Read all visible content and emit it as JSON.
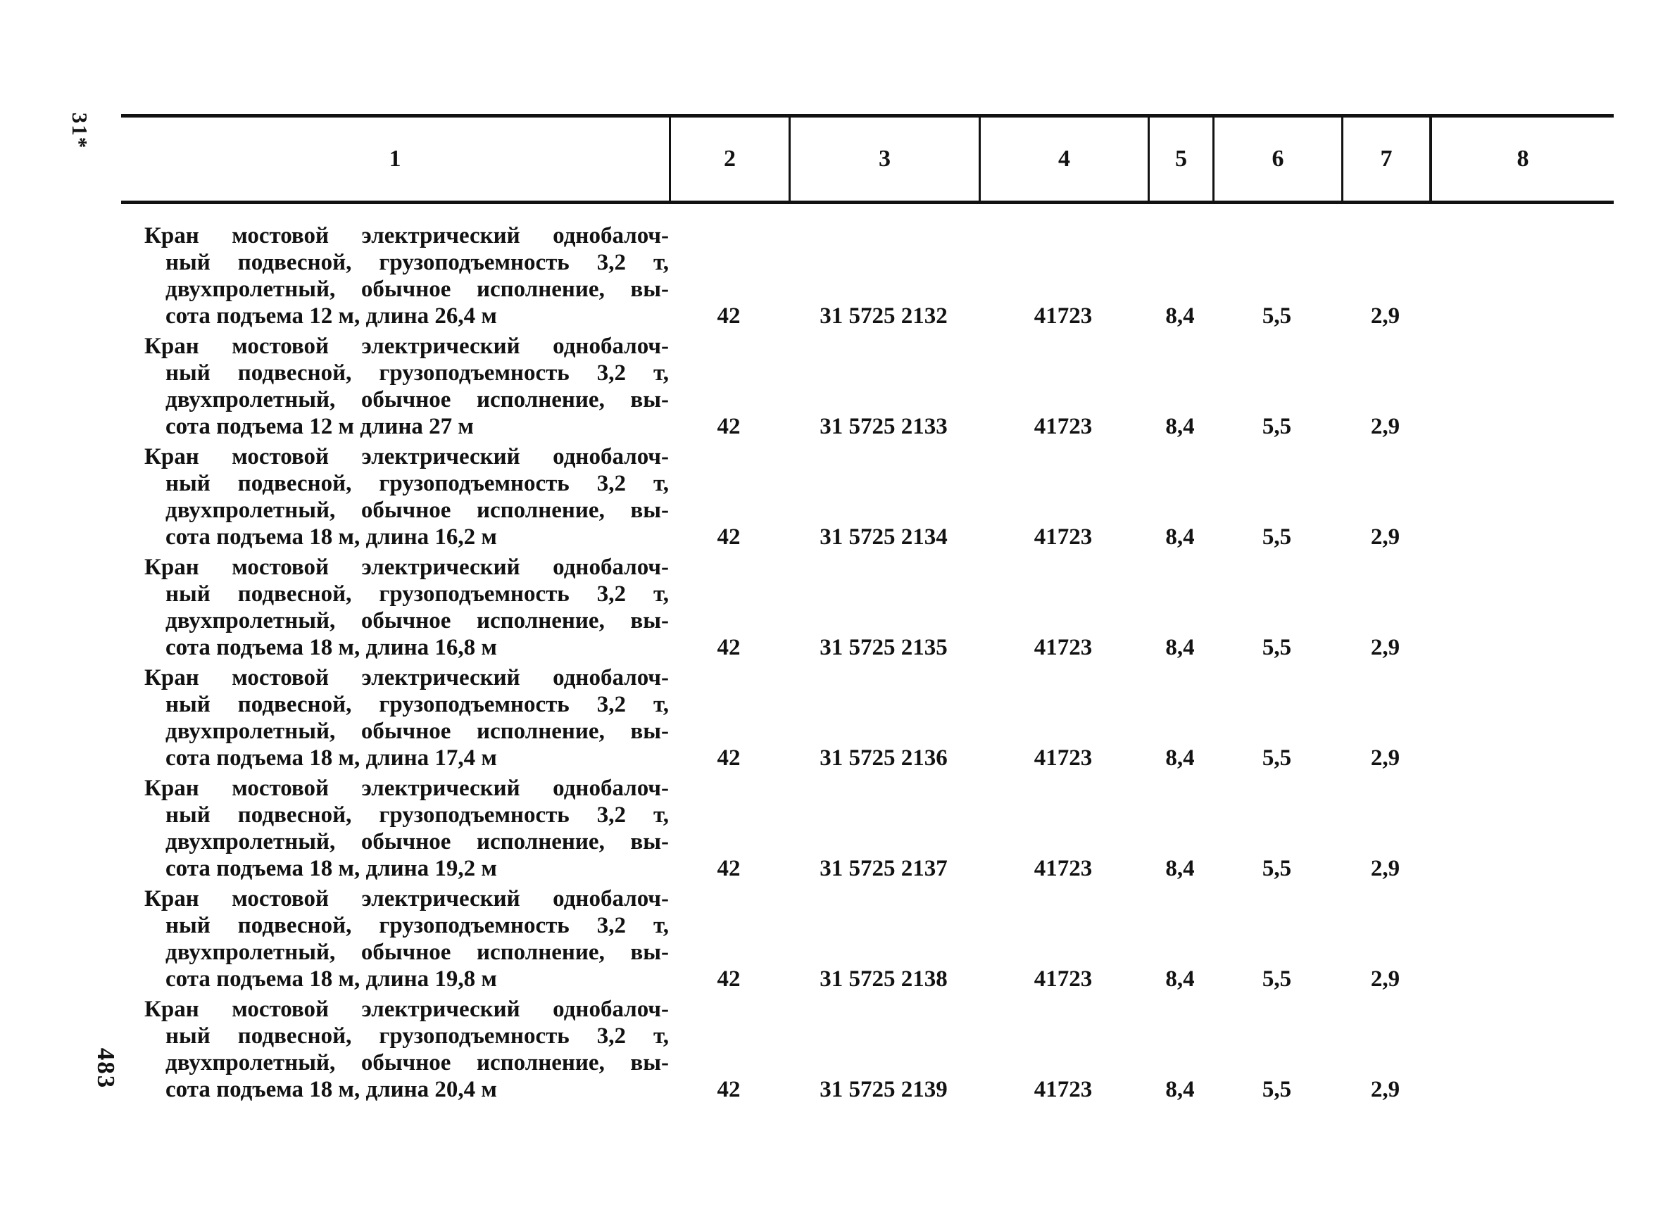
{
  "page": {
    "marginal_top_label": "31*",
    "page_number": "483",
    "ink_color": "#121212",
    "paper_color": "#ffffff"
  },
  "table": {
    "header": {
      "cols": [
        "1",
        "2",
        "3",
        "4",
        "5",
        "6",
        "7",
        "8"
      ]
    },
    "rows": [
      {
        "lines": [
          "Кран мостовой электрический однобалоч-",
          "ный подвесной, грузоподъемность 3,2 т,",
          "двухпролетный, обычное исполнение, вы-",
          "сота подъема 12 м, длина 26,4 м"
        ],
        "values": [
          "42",
          "31 5725 2132",
          "41723",
          "8,4",
          "5,5",
          "2,9",
          ""
        ]
      },
      {
        "lines": [
          "Кран мостовой электрический однобалоч-",
          "ный подвесной, грузоподъемность 3,2 т,",
          "двухпролетный, обычное исполнение, вы-",
          "сота подъема 12 м длина 27 м"
        ],
        "values": [
          "42",
          "31 5725 2133",
          "41723",
          "8,4",
          "5,5",
          "2,9",
          ""
        ]
      },
      {
        "lines": [
          "Кран мостовой электрический однобалоч-",
          "ный подвесной, грузоподъемность 3,2 т,",
          "двухпролетный, обычное исполнение, вы-",
          "сота подъема 18 м, длина 16,2 м"
        ],
        "values": [
          "42",
          "31 5725 2134",
          "41723",
          "8,4",
          "5,5",
          "2,9",
          ""
        ]
      },
      {
        "lines": [
          "Кран мостовой электрический однобалоч-",
          "ный подвесной, грузоподъемность 3,2 т,",
          "двухпролетный, обычное исполнение, вы-",
          "сота подъема 18 м, длина 16,8 м"
        ],
        "values": [
          "42",
          "31 5725 2135",
          "41723",
          "8,4",
          "5,5",
          "2,9",
          ""
        ]
      },
      {
        "lines": [
          "Кран мостовой электрический однобалоч-",
          "ный подвесной, грузоподъемность 3,2 т,",
          "двухпролетный, обычное исполнение, вы-",
          "сота подъема 18 м, длина 17,4 м"
        ],
        "values": [
          "42",
          "31 5725 2136",
          "41723",
          "8,4",
          "5,5",
          "2,9",
          ""
        ]
      },
      {
        "lines": [
          "Кран мостовой электрический однобалоч-",
          "ный подвесной, грузоподъемность 3,2 т,",
          "двухпролетный, обычное исполнение, вы-",
          "сота подъема 18 м, длина 19,2 м"
        ],
        "values": [
          "42",
          "31 5725 2137",
          "41723",
          "8,4",
          "5,5",
          "2,9",
          ""
        ]
      },
      {
        "lines": [
          "Кран мостовой электрический однобалоч-",
          "ный подвесной, грузоподъемность 3,2 т,",
          "двухпролетный, обычное исполнение, вы-",
          "сота подъема 18 м, длина 19,8 м"
        ],
        "values": [
          "42",
          "31 5725 2138",
          "41723",
          "8,4",
          "5,5",
          "2,9",
          ""
        ]
      },
      {
        "lines": [
          "Кран мостовой электрический однобалоч-",
          "ный подвесной, грузоподъемность 3,2 т,",
          "двухпролетный, обычное исполнение, вы-",
          "сота подъема 18 м, длина 20,4 м"
        ],
        "values": [
          "42",
          "31 5725 2139",
          "41723",
          "8,4",
          "5,5",
          "2,9",
          ""
        ]
      }
    ]
  }
}
